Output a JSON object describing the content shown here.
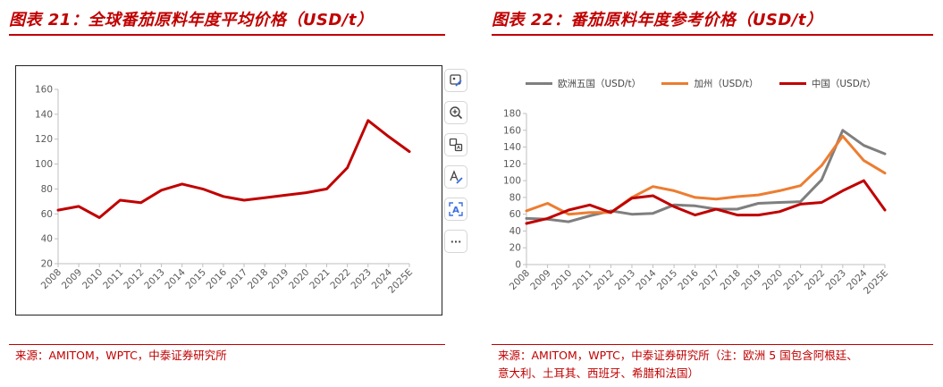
{
  "left_panel": {
    "title": "图表 21：全球番茄原料年度平均价格（USD/t）",
    "source": "来源：AMITOM，WPTC，中泰证券研究所"
  },
  "right_panel": {
    "title": "图表 22：番茄原料年度参考价格（USD/t）",
    "source_line1": "来源：AMITOM，WPTC，中泰证券研究所（注：欧洲 5 国包含阿根廷、",
    "source_line2": "意大利、土耳其、西班牙、希腊和法国）"
  },
  "toolbar": {
    "buttons": [
      {
        "name": "image-edit-icon"
      },
      {
        "name": "zoom-in-icon"
      },
      {
        "name": "translate-icon"
      },
      {
        "name": "text-edit-icon"
      },
      {
        "name": "ocr-icon",
        "label": "A"
      },
      {
        "name": "more-icon",
        "label": "···"
      }
    ]
  },
  "colors": {
    "caption_red": "#c00000",
    "series_europe": "#7f7f7f",
    "series_california": "#ed7d31",
    "series_china": "#c00000",
    "left_series": "#c00000"
  },
  "chart_data": [
    {
      "type": "line",
      "title": "",
      "x": [
        "2008",
        "2009",
        "2010",
        "2011",
        "2012",
        "2013",
        "2014",
        "2015",
        "2016",
        "2017",
        "2018",
        "2019",
        "2020",
        "2021",
        "2022",
        "2023",
        "2024",
        "2025E"
      ],
      "series": [
        {
          "values": [
            63,
            66,
            57,
            71,
            69,
            79,
            84,
            80,
            74,
            71,
            73,
            75,
            77,
            80,
            97,
            135,
            122,
            110
          ]
        }
      ],
      "ylim": [
        20,
        160
      ],
      "yticks": [
        20,
        40,
        60,
        80,
        100,
        120,
        140,
        160
      ],
      "grid": false,
      "xlabel": "",
      "ylabel": ""
    },
    {
      "type": "line",
      "title": "",
      "x": [
        "2008",
        "2009",
        "2010",
        "2011",
        "2012",
        "2013",
        "2014",
        "2015",
        "2016",
        "2017",
        "2018",
        "2019",
        "2020",
        "2021",
        "2022",
        "2023",
        "2024",
        "2025E"
      ],
      "series": [
        {
          "name": "欧洲五国（USD/t）",
          "values": [
            55,
            54,
            51,
            58,
            64,
            60,
            61,
            71,
            70,
            66,
            66,
            73,
            74,
            75,
            101,
            160,
            142,
            132
          ]
        },
        {
          "name": "加州（USD/t）",
          "values": [
            64,
            73,
            60,
            62,
            62,
            80,
            93,
            88,
            80,
            78,
            81,
            83,
            88,
            94,
            118,
            153,
            124,
            109
          ]
        },
        {
          "name": "中国（USD/t）",
          "values": [
            49,
            55,
            65,
            71,
            62,
            79,
            82,
            69,
            59,
            66,
            59,
            59,
            63,
            72,
            74,
            88,
            100,
            65
          ]
        }
      ],
      "ylim": [
        0,
        180
      ],
      "yticks": [
        0,
        20,
        40,
        60,
        80,
        100,
        120,
        140,
        160,
        180
      ],
      "grid": false,
      "legend": "top",
      "xlabel": "",
      "ylabel": ""
    }
  ]
}
